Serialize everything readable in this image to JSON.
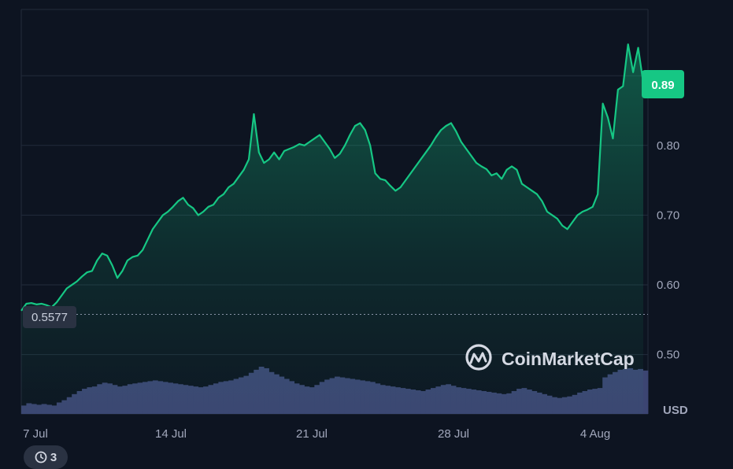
{
  "chart_data": {
    "type": "line",
    "ylabel": "",
    "xlabel": "",
    "unit_label": "USD",
    "y_ticks": [
      "0.50",
      "0.60",
      "0.70",
      "0.80"
    ],
    "y_tick_values": [
      0.5,
      0.6,
      0.7,
      0.8
    ],
    "x_ticks": [
      "7 Jul",
      "14 Jul",
      "21 Jul",
      "28 Jul",
      "4 Aug"
    ],
    "ylim": [
      0.415,
      0.995
    ],
    "reference_price": 0.5577,
    "reference_label": "0.5577",
    "current_price": 0.89,
    "current_label": "0.89",
    "grid": true,
    "series": [
      {
        "values": [
          0.563,
          0.573,
          0.574,
          0.572,
          0.573,
          0.571,
          0.568,
          0.575,
          0.585,
          0.595,
          0.6,
          0.605,
          0.612,
          0.618,
          0.62,
          0.635,
          0.645,
          0.642,
          0.628,
          0.61,
          0.62,
          0.635,
          0.64,
          0.642,
          0.65,
          0.665,
          0.68,
          0.69,
          0.7,
          0.705,
          0.712,
          0.72,
          0.725,
          0.715,
          0.71,
          0.7,
          0.705,
          0.712,
          0.715,
          0.725,
          0.73,
          0.74,
          0.745,
          0.755,
          0.765,
          0.78,
          0.845,
          0.79,
          0.775,
          0.78,
          0.79,
          0.78,
          0.792,
          0.795,
          0.798,
          0.802,
          0.8,
          0.805,
          0.81,
          0.815,
          0.805,
          0.795,
          0.782,
          0.788,
          0.8,
          0.815,
          0.828,
          0.832,
          0.822,
          0.8,
          0.76,
          0.752,
          0.75,
          0.742,
          0.735,
          0.74,
          0.75,
          0.76,
          0.77,
          0.78,
          0.79,
          0.8,
          0.812,
          0.822,
          0.828,
          0.832,
          0.82,
          0.805,
          0.795,
          0.785,
          0.775,
          0.77,
          0.766,
          0.757,
          0.76,
          0.752,
          0.765,
          0.77,
          0.765,
          0.745,
          0.74,
          0.735,
          0.73,
          0.72,
          0.705,
          0.7,
          0.695,
          0.685,
          0.68,
          0.69,
          0.7,
          0.705,
          0.708,
          0.712,
          0.73,
          0.86,
          0.84,
          0.81,
          0.88,
          0.885,
          0.945,
          0.905,
          0.94,
          0.89
        ]
      }
    ],
    "volume": [
      0.011,
      0.014,
      0.013,
      0.012,
      0.013,
      0.012,
      0.011,
      0.015,
      0.018,
      0.022,
      0.026,
      0.03,
      0.033,
      0.035,
      0.036,
      0.039,
      0.041,
      0.04,
      0.038,
      0.036,
      0.037,
      0.039,
      0.04,
      0.041,
      0.042,
      0.043,
      0.044,
      0.043,
      0.042,
      0.041,
      0.04,
      0.039,
      0.038,
      0.037,
      0.036,
      0.035,
      0.036,
      0.038,
      0.04,
      0.042,
      0.043,
      0.044,
      0.046,
      0.048,
      0.05,
      0.054,
      0.058,
      0.062,
      0.06,
      0.055,
      0.052,
      0.049,
      0.046,
      0.043,
      0.04,
      0.038,
      0.036,
      0.035,
      0.038,
      0.042,
      0.045,
      0.047,
      0.049,
      0.048,
      0.047,
      0.046,
      0.045,
      0.044,
      0.043,
      0.042,
      0.04,
      0.038,
      0.037,
      0.036,
      0.035,
      0.034,
      0.033,
      0.032,
      0.031,
      0.03,
      0.032,
      0.034,
      0.036,
      0.038,
      0.039,
      0.037,
      0.035,
      0.034,
      0.033,
      0.032,
      0.031,
      0.03,
      0.029,
      0.028,
      0.027,
      0.026,
      0.027,
      0.03,
      0.033,
      0.034,
      0.032,
      0.03,
      0.028,
      0.026,
      0.024,
      0.022,
      0.021,
      0.022,
      0.023,
      0.025,
      0.028,
      0.03,
      0.032,
      0.033,
      0.034,
      0.048,
      0.052,
      0.055,
      0.058,
      0.059,
      0.06,
      0.058,
      0.059,
      0.057
    ]
  },
  "brand": {
    "name": "CoinMarketCap",
    "logo_icon": "coinmarketcap-logo-icon"
  },
  "history_button": {
    "count": "3",
    "icon": "history-icon"
  },
  "colors": {
    "background": "#0d1421",
    "line": "#16c784",
    "volume": "#3c4572",
    "grid": "#222b3b",
    "badge": "#16c784",
    "reference_badge": "#2a3242"
  }
}
